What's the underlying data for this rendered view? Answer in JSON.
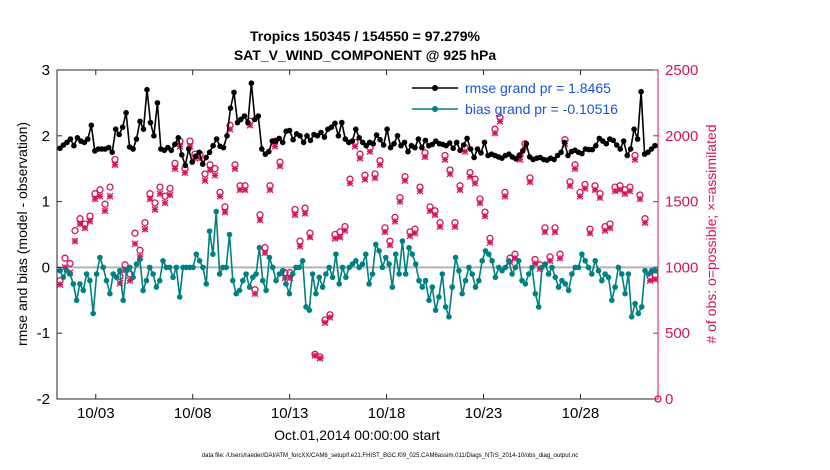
{
  "chart_data": {
    "type": "line",
    "title_line1": "Tropics 150345 / 154550 = 97.279%",
    "title_line2": "SAT_V_WIND_COMPONENT @ 925 hPa",
    "xlabel": "Oct.01,2014 00:00:00 start",
    "ylabel_left": "rmse and bias (model - observation)",
    "ylabel_right": "# of obs: o=possible; ×=assimilated",
    "footer": "data file: /Users/raeder/DAI/ATM_forcXX/CAM6_setup/f.e21.FHIST_BGC.f09_025.CAM6assim.011/Diags_NTrS_2014-10/obs_diag_output.nc",
    "x_ticks": [
      "10/03",
      "10/08",
      "10/13",
      "10/18",
      "10/23",
      "10/28"
    ],
    "x_tick_days": [
      3,
      8,
      13,
      18,
      23,
      28
    ],
    "xlim_days": [
      1,
      32
    ],
    "left_ylim": [
      -2,
      3
    ],
    "left_ticks": [
      "-2",
      "-1",
      "0",
      "1",
      "2",
      "3"
    ],
    "right_ylim": [
      0,
      2500
    ],
    "right_ticks": [
      "0",
      "500",
      "1000",
      "1500",
      "2000",
      "2500"
    ],
    "colors": {
      "rmse": "#000000",
      "bias": "#008080",
      "obs": "#d6135b",
      "zero": "#b3b3b3",
      "legend_text": "#1a53d6"
    },
    "legend": [
      {
        "name": "rmse",
        "label": "rmse grand pr = 1.8465"
      },
      {
        "name": "bias",
        "label": "bias grand pr = -0.10516"
      }
    ],
    "series": [
      {
        "name": "rmse",
        "values": [
          1.81,
          1.86,
          1.9,
          1.95,
          1.85,
          1.97,
          1.92,
          1.9,
          1.95,
          2.16,
          1.77,
          1.8,
          1.8,
          1.8,
          1.82,
          1.75,
          2.1,
          2.02,
          2.13,
          2.35,
          1.83,
          1.8,
          1.95,
          2.22,
          2.1,
          2.7,
          2.2,
          2.0,
          2.5,
          1.8,
          1.78,
          1.82,
          1.78,
          1.87,
          1.97,
          1.71,
          1.55,
          1.8,
          1.6,
          1.69,
          1.75,
          1.57,
          1.67,
          1.75,
          1.85,
          1.95,
          1.84,
          1.82,
          2.0,
          2.42,
          2.66,
          2.2,
          2.25,
          2.3,
          2.2,
          2.8,
          2.25,
          2.3,
          1.8,
          1.72,
          1.76,
          1.92,
          1.92,
          1.96,
          1.9,
          2.07,
          2.08,
          1.94,
          2.03,
          2.0,
          1.9,
          2.0,
          1.93,
          2.02,
          2.0,
          2.05,
          1.98,
          2.1,
          2.13,
          2.19,
          2.0,
          2.2,
          1.95,
          1.9,
          1.92,
          2.1,
          1.97,
          1.9,
          1.85,
          1.9,
          1.88,
          2.01,
          1.94,
          1.86,
          2.1,
          1.82,
          1.88,
          2.0,
          1.85,
          1.9,
          1.76,
          1.85,
          1.82,
          1.95,
          1.82,
          1.93,
          1.85,
          1.87,
          1.92,
          1.88,
          1.87,
          1.85,
          1.89,
          1.81,
          1.9,
          1.78,
          1.86,
          1.96,
          1.8,
          1.67,
          1.8,
          1.74,
          1.9,
          1.7,
          1.72,
          1.7,
          1.68,
          1.66,
          1.7,
          1.72,
          1.68,
          1.65,
          1.7,
          1.77,
          1.88,
          1.68,
          1.64,
          1.66,
          1.67,
          1.64,
          1.63,
          1.66,
          1.64,
          1.7,
          1.75,
          1.9,
          1.7,
          1.76,
          1.78,
          1.75,
          1.73,
          1.8,
          1.79,
          1.79,
          1.85,
          1.96,
          1.92,
          1.88,
          1.95,
          1.93,
          1.86,
          1.8,
          1.92,
          1.7,
          1.8,
          2.1,
          1.95,
          2.67,
          1.72,
          1.75,
          1.8,
          1.85
        ]
      },
      {
        "name": "bias",
        "values": [
          -0.05,
          -0.15,
          -0.05,
          -0.1,
          -0.25,
          -0.5,
          -0.25,
          -0.35,
          -0.1,
          -0.2,
          -0.7,
          -0.1,
          0.15,
          0.0,
          -0.2,
          -0.4,
          -0.1,
          -0.15,
          -0.05,
          -0.5,
          -0.05,
          0.0,
          -0.15,
          0.05,
          0.12,
          -0.35,
          -0.2,
          0.0,
          -0.1,
          -0.3,
          -0.2,
          0.1,
          0.0,
          0.0,
          -0.15,
          0.0,
          -0.45,
          0.0,
          0.0,
          0.0,
          0.0,
          0.2,
          0.1,
          0.0,
          -0.25,
          0.55,
          0.2,
          0.85,
          -0.1,
          0.0,
          0.0,
          0.5,
          -0.2,
          -0.4,
          -0.35,
          -0.2,
          -0.1,
          -0.3,
          -0.15,
          -0.1,
          0.3,
          -0.2,
          -0.35,
          0.15,
          0.0,
          -0.2,
          -0.1,
          -0.05,
          -0.25,
          -0.4,
          -0.1,
          0.0,
          0.0,
          0.1,
          -0.6,
          -0.65,
          -0.1,
          -0.4,
          -0.15,
          -0.3,
          -0.1,
          0.0,
          -0.15,
          0.2,
          -0.25,
          0.0,
          -0.15,
          0.0,
          0.05,
          0.1,
          0.0,
          0.05,
          0.2,
          -0.25,
          -0.1,
          0.35,
          0.25,
          0.0,
          0.15,
          0.05,
          -0.3,
          0.2,
          -0.1,
          0.4,
          -0.1,
          0.3,
          0.2,
          0.05,
          -0.2,
          -0.3,
          -0.2,
          -0.5,
          -0.3,
          -0.65,
          -0.45,
          -0.1,
          -0.6,
          -0.75,
          -0.3,
          0.15,
          -0.05,
          -0.4,
          -0.2,
          0.0,
          -0.1,
          -0.3,
          -0.2,
          0.1,
          0.25,
          0.2,
          0.1,
          -0.15,
          0.0,
          -0.05,
          0.0,
          0.1,
          -0.1,
          0.0,
          0.1,
          -0.2,
          -0.25,
          -0.1,
          0.0,
          -0.4,
          -0.6,
          0.0,
          0.05,
          -0.1,
          0.0,
          -0.15,
          -0.3,
          -0.2,
          -0.25,
          -0.35,
          -0.1,
          0.0,
          0.0,
          0.2,
          0.1,
          0.0,
          -0.1,
          0.1,
          -0.05,
          -0.2,
          -0.1,
          -0.15,
          -0.5,
          -0.3,
          0.0,
          -0.1,
          -0.4,
          -0.1,
          -0.75,
          -0.55,
          -0.7,
          -0.6,
          -0.05,
          -0.1,
          -0.05,
          -0.05
        ]
      },
      {
        "name": "obs_possible",
        "values": [
          900,
          1070,
          1030,
          1280,
          1370,
          1330,
          1390,
          1560,
          1590,
          1480,
          1610,
          1820,
          930,
          1020,
          950,
          1260,
          1130,
          1340,
          1560,
          1490,
          1610,
          1540,
          1600,
          1790,
          1960,
          1750,
          1960,
          1860,
          1860,
          1710,
          1780,
          1750,
          1570,
          1460,
          2080,
          1780,
          1620,
          1620,
          2110,
          830,
          1400,
          1150,
          1620,
          1960,
          1800,
          960,
          960,
          1440,
          1200,
          1450,
          1260,
          340,
          320,
          600,
          640,
          1250,
          1270,
          1310,
          1670,
          1950,
          1860,
          1700,
          1910,
          1710,
          1810,
          1300,
          1200,
          1380,
          1530,
          1690,
          1270,
          1290,
          1610,
          1870,
          1460,
          1430,
          1340,
          1850,
          1740,
          1340,
          1620,
          1910,
          1720,
          1670,
          1520,
          1420,
          1220,
          2050,
          2140,
          1570,
          1070,
          1100,
          1850,
          1940,
          1680,
          1060,
          1020,
          1300,
          1080,
          1300,
          1100,
          1970,
          1650,
          1780,
          1570,
          1630,
          1290,
          1620,
          1560,
          1310,
          1330,
          1610,
          1620,
          1590,
          1610,
          1850,
          1550,
          1370,
          930,
          940
        ]
      },
      {
        "name": "obs_assimilated",
        "values": [
          870,
          1000,
          960,
          1200,
          1330,
          1300,
          1350,
          1520,
          1540,
          1430,
          1540,
          1780,
          880,
          980,
          900,
          1180,
          1080,
          1290,
          1520,
          1440,
          1560,
          1490,
          1550,
          1750,
          1920,
          1720,
          1920,
          1830,
          1830,
          1660,
          1740,
          1700,
          1540,
          1420,
          2050,
          1750,
          1590,
          1590,
          2080,
          800,
          1360,
          1110,
          1590,
          1920,
          1770,
          920,
          920,
          1400,
          1160,
          1410,
          1230,
          330,
          310,
          580,
          620,
          1220,
          1230,
          1280,
          1640,
          1920,
          1830,
          1670,
          1880,
          1680,
          1780,
          1270,
          1170,
          1350,
          1500,
          1660,
          1240,
          1260,
          1580,
          1840,
          1430,
          1400,
          1310,
          1820,
          1710,
          1310,
          1590,
          1880,
          1690,
          1640,
          1490,
          1390,
          1190,
          2020,
          2110,
          1540,
          1040,
          1070,
          1820,
          1910,
          1650,
          1030,
          990,
          1270,
          1050,
          1270,
          1070,
          1940,
          1620,
          1750,
          1540,
          1600,
          1260,
          1590,
          1530,
          1280,
          1300,
          1580,
          1590,
          1560,
          1580,
          1820,
          1520,
          1340,
          900,
          910
        ]
      }
    ]
  }
}
